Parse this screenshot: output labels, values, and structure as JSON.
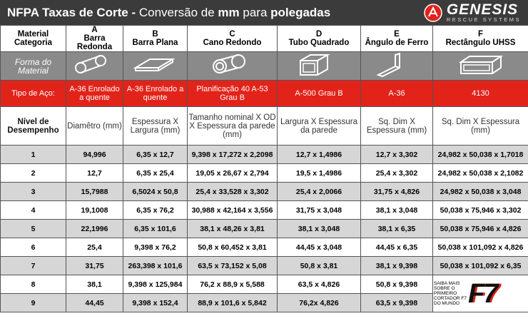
{
  "header": {
    "title_parts": [
      {
        "text": "NFPA Taxas de Corte -",
        "bold": true
      },
      {
        "text": " Conversão de ",
        "bold": false
      },
      {
        "text": "mm",
        "bold": true
      },
      {
        "text": " para ",
        "bold": false
      },
      {
        "text": "polegadas",
        "bold": true
      }
    ],
    "logo": {
      "name": "GENESIS",
      "tagline": "RESCUE SYSTEMS"
    }
  },
  "table": {
    "corner": "Material Categoria",
    "columns": [
      {
        "letter": "A",
        "name": "Barra Redonda"
      },
      {
        "letter": "B",
        "name": "Barra Plana"
      },
      {
        "letter": "C",
        "name": "Cano Redondo"
      },
      {
        "letter": "D",
        "name": "Tubo Quadrado"
      },
      {
        "letter": "E",
        "name": "Ângulo de Ferro"
      },
      {
        "letter": "F",
        "name": "Rectângulo UHSS"
      }
    ],
    "shape_label": "Forma do Material",
    "steel_label": "Tipo de Aço:",
    "steel": [
      "A-36 Enrolado a quente",
      "A-36 Enrolado a quente",
      "Planificação 40 A-53 Grau B",
      "A-500 Grau B",
      "A-36",
      "4130"
    ],
    "dimension_label": "Nível de Desempenho",
    "dimensions": [
      "Diamêtro (mm)",
      "Espessura X Largura (mm)",
      "Tamanho nominal X OD X Espessura da parede (mm)",
      "Largura X Espessura da parede",
      "Sq. Dim X Espessura (mm)",
      "Sq. Dim X Espessura (mm)"
    ],
    "rows": [
      [
        "1",
        "94,996",
        "6,35 x 12,7",
        "9,398 x 17,272 x 2,2098",
        "12,7 x 1,4986",
        "12,7 x 3,302",
        "24,982 x 50,038 x 1,7018"
      ],
      [
        "2",
        "12,7",
        "6,35 x 25,4",
        "19,05 x 26,67 x 2,794",
        "19,5 x 1,4986",
        "25,4 x 3,302",
        "24,982 x 50,038 x 2,1082"
      ],
      [
        "3",
        "15,7988",
        "6,5024 x 50,8",
        "25,4 x 33,528 x 3,302",
        "25,4 x 2,0066",
        "31,75 x 4,826",
        "24,982 x 50,038 x 3,048"
      ],
      [
        "4",
        "19,1008",
        "6,35 x 76,2",
        "30,988 x 42,164 x 3,556",
        "31,75 x 3,048",
        "38,1 x 3,048",
        "50,038 x 75,946 x 3,302"
      ],
      [
        "5",
        "22,1996",
        "6,35 x 101,6",
        "38,1 x 48,26 x 3,81",
        "38,1 x 3,048",
        "38,1 x 6,35",
        "50,038 x 75,946 x 4,826"
      ],
      [
        "6",
        "25,4",
        "9,398 x 76,2",
        "50,8 x 60,452 x 3,81",
        "44,45 x 3,048",
        "44,45 x 6,35",
        "50,038 x 101,092 x 4,826"
      ],
      [
        "7",
        "31,75",
        "263,398 x 101,6",
        "63,5 x 73,152 x 5,08",
        "50,8 x 3,81",
        "38,1 x 9,398",
        "50,038 x 101,092 x 6,35"
      ],
      [
        "8",
        "38,1",
        "9,398 x 125,984",
        "76,2 x 88,9 x 5,588",
        "63,5 x 4,826",
        "50,8 x 9,398"
      ],
      [
        "9",
        "44,45",
        "9,398 x 152,4",
        "88,9 x 101,6 x 5,842",
        "76,2x 4,826",
        "63,5 x 9,398"
      ]
    ],
    "promo": {
      "text": "SAIBA MAIS SOBRE O PRIMEIRO CORTADOR F7 DO MUNDO",
      "logo": "F7"
    }
  }
}
